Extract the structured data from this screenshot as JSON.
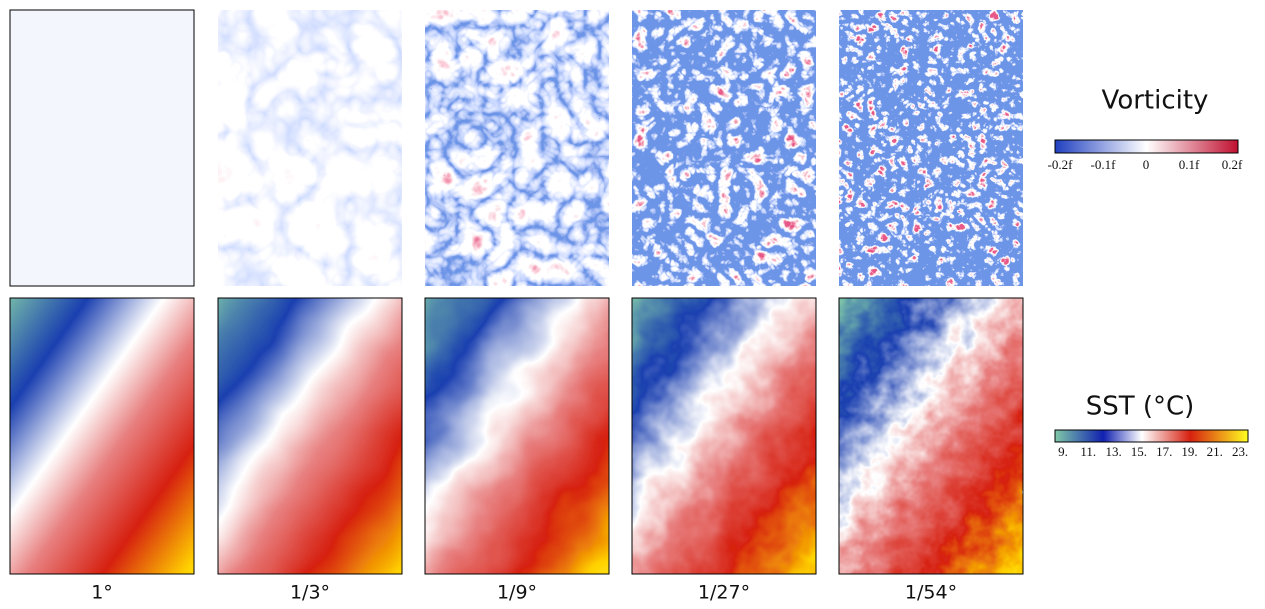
{
  "columns": [
    "1°",
    "1/3°",
    "1/9°",
    "1/27°",
    "1/54°"
  ],
  "vorticity": {
    "title": "Vorticity",
    "ticks": [
      "-0.2f",
      "-0.1f",
      "0",
      "0.1f",
      "0.2f"
    ]
  },
  "sst": {
    "title": "SST (°C)",
    "ticks": [
      "9.",
      "11.",
      "13.",
      "15.",
      "17.",
      "19.",
      "21.",
      "23."
    ]
  }
}
